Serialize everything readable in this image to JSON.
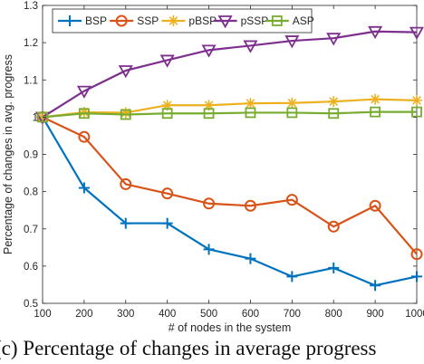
{
  "chart_data": {
    "type": "line",
    "xlabel": "# of nodes in the system",
    "ylabel": "Percentage of changes in avg. progress",
    "x": [
      100,
      200,
      300,
      400,
      500,
      600,
      700,
      800,
      900,
      1000
    ],
    "xlim": [
      100,
      1000
    ],
    "ylim": [
      0.5,
      1.3
    ],
    "xticks": [
      "100",
      "200",
      "300",
      "400",
      "500",
      "600",
      "700",
      "800",
      "900",
      "1000"
    ],
    "yticks": [
      "0.5",
      "0.6",
      "0.7",
      "0.8",
      "0.9",
      "1",
      "1.1",
      "1.2",
      "1.3"
    ],
    "grid": false,
    "legend_position": "top",
    "series": [
      {
        "name": "BSP",
        "color": "#0072BD",
        "marker": "plus",
        "values": [
          1.0,
          0.81,
          0.715,
          0.715,
          0.645,
          0.62,
          0.572,
          0.595,
          0.548,
          0.572
        ]
      },
      {
        "name": "SSP",
        "color": "#D95319",
        "marker": "circle",
        "values": [
          1.0,
          0.947,
          0.82,
          0.795,
          0.768,
          0.762,
          0.778,
          0.706,
          0.762,
          0.632
        ]
      },
      {
        "name": "pBSP",
        "color": "#EDB120",
        "marker": "asterisk",
        "values": [
          1.0,
          1.013,
          1.012,
          1.032,
          1.032,
          1.037,
          1.038,
          1.042,
          1.048,
          1.045
        ]
      },
      {
        "name": "pSSP",
        "color": "#7E2F8E",
        "marker": "triangle-down",
        "values": [
          1.0,
          1.07,
          1.125,
          1.153,
          1.18,
          1.192,
          1.205,
          1.212,
          1.23,
          1.228
        ]
      },
      {
        "name": "ASP",
        "color": "#77AC30",
        "marker": "square",
        "values": [
          1.0,
          1.01,
          1.007,
          1.01,
          1.01,
          1.012,
          1.012,
          1.01,
          1.014,
          1.014
        ]
      }
    ]
  },
  "caption": "(c) Percentage of changes in average progress"
}
